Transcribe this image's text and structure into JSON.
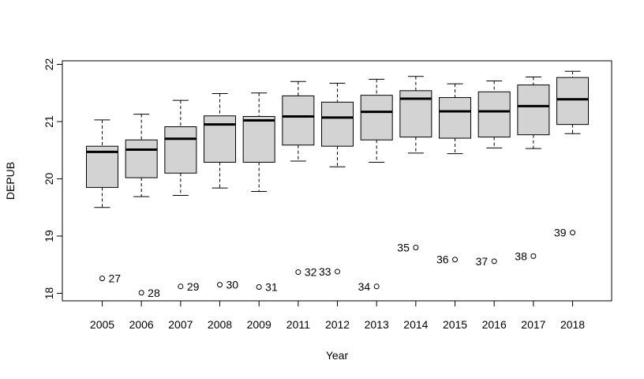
{
  "chart_data": {
    "type": "boxplot",
    "xlabel": "Year",
    "ylabel": "DEPUB",
    "ylim": [
      17.9,
      22.05
    ],
    "yticks": [
      18,
      19,
      20,
      21,
      22
    ],
    "ytick_labels": [
      "18",
      "19",
      "20",
      "21",
      "22"
    ],
    "box_fill": "#d3d3d3",
    "categories": [
      "2005",
      "2006",
      "2007",
      "2008",
      "2009",
      "2011",
      "2012",
      "2013",
      "2014",
      "2015",
      "2016",
      "2017",
      "2018"
    ],
    "boxes": [
      {
        "category": "2005",
        "whisker_low": 19.5,
        "q1": 19.85,
        "median": 20.47,
        "q3": 20.57,
        "whisker_high": 21.03
      },
      {
        "category": "2006",
        "whisker_low": 19.69,
        "q1": 20.02,
        "median": 20.51,
        "q3": 20.68,
        "whisker_high": 21.13
      },
      {
        "category": "2007",
        "whisker_low": 19.71,
        "q1": 20.1,
        "median": 20.7,
        "q3": 20.91,
        "whisker_high": 21.37
      },
      {
        "category": "2008",
        "whisker_low": 19.84,
        "q1": 20.29,
        "median": 20.95,
        "q3": 21.1,
        "whisker_high": 21.49
      },
      {
        "category": "2009",
        "whisker_low": 19.78,
        "q1": 20.29,
        "median": 21.02,
        "q3": 21.09,
        "whisker_high": 21.5
      },
      {
        "category": "2011",
        "whisker_low": 20.31,
        "q1": 20.59,
        "median": 21.09,
        "q3": 21.45,
        "whisker_high": 21.7
      },
      {
        "category": "2012",
        "whisker_low": 20.21,
        "q1": 20.57,
        "median": 21.07,
        "q3": 21.34,
        "whisker_high": 21.67
      },
      {
        "category": "2013",
        "whisker_low": 20.29,
        "q1": 20.68,
        "median": 21.17,
        "q3": 21.46,
        "whisker_high": 21.74
      },
      {
        "category": "2014",
        "whisker_low": 20.45,
        "q1": 20.73,
        "median": 21.4,
        "q3": 21.54,
        "whisker_high": 21.79
      },
      {
        "category": "2015",
        "whisker_low": 20.44,
        "q1": 20.71,
        "median": 21.18,
        "q3": 21.42,
        "whisker_high": 21.66
      },
      {
        "category": "2016",
        "whisker_low": 20.54,
        "q1": 20.73,
        "median": 21.18,
        "q3": 21.52,
        "whisker_high": 21.71
      },
      {
        "category": "2017",
        "whisker_low": 20.53,
        "q1": 20.77,
        "median": 21.27,
        "q3": 21.64,
        "whisker_high": 21.78
      },
      {
        "category": "2018",
        "whisker_low": 20.79,
        "q1": 20.95,
        "median": 21.39,
        "q3": 21.77,
        "whisker_high": 21.88
      }
    ],
    "outliers": [
      {
        "category": "2005",
        "y": 18.26,
        "label": "27",
        "label_side": "right"
      },
      {
        "category": "2006",
        "y": 18.01,
        "label": "28",
        "label_side": "right"
      },
      {
        "category": "2007",
        "y": 18.12,
        "label": "29",
        "label_side": "right"
      },
      {
        "category": "2008",
        "y": 18.15,
        "label": "30",
        "label_side": "right"
      },
      {
        "category": "2009",
        "y": 18.11,
        "label": "31",
        "label_side": "right"
      },
      {
        "category": "2011",
        "y": 18.37,
        "label": "32",
        "label_side": "right"
      },
      {
        "category": "2012",
        "y": 18.38,
        "label": "33",
        "label_side": "left"
      },
      {
        "category": "2013",
        "y": 18.12,
        "label": "34",
        "label_side": "left"
      },
      {
        "category": "2014",
        "y": 18.8,
        "label": "35",
        "label_side": "left"
      },
      {
        "category": "2015",
        "y": 18.59,
        "label": "36",
        "label_side": "left"
      },
      {
        "category": "2016",
        "y": 18.56,
        "label": "37",
        "label_side": "left"
      },
      {
        "category": "2017",
        "y": 18.65,
        "label": "38",
        "label_side": "left"
      },
      {
        "category": "2018",
        "y": 19.06,
        "label": "39",
        "label_side": "left"
      }
    ]
  }
}
